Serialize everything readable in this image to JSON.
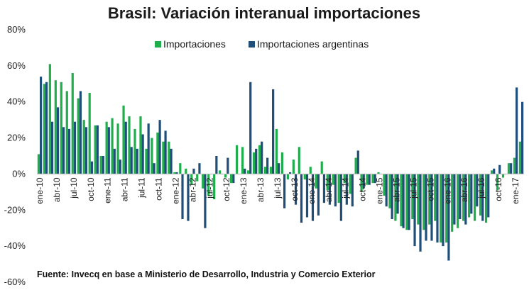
{
  "chart_data": {
    "type": "bar",
    "title": "Brasil: Variación interanual importaciones",
    "source": "Fuente: Invecq en base a Ministerio de Desarrollo, Industria y Comercio Exterior",
    "ylim": [
      -60,
      80
    ],
    "yticks": [
      -60,
      -40,
      -20,
      0,
      20,
      40,
      60,
      80
    ],
    "ytick_labels": [
      "-60%",
      "-40%",
      "-20%",
      "0%",
      "20%",
      "40%",
      "60%",
      "80%"
    ],
    "grid": false,
    "legend_position": "top-center",
    "colors": {
      "Importaciones": "#1fae4b",
      "Importaciones argentinas": "#1f4e79"
    },
    "x": [
      "ene-10",
      "feb-10",
      "mar-10",
      "abr-10",
      "may-10",
      "jun-10",
      "jul-10",
      "ago-10",
      "sep-10",
      "oct-10",
      "nov-10",
      "dic-10",
      "ene-11",
      "feb-11",
      "mar-11",
      "abr-11",
      "may-11",
      "jun-11",
      "jul-11",
      "ago-11",
      "sep-11",
      "oct-11",
      "nov-11",
      "dic-11",
      "ene-12",
      "feb-12",
      "mar-12",
      "abr-12",
      "may-12",
      "jun-12",
      "jul-12",
      "ago-12",
      "sep-12",
      "oct-12",
      "nov-12",
      "dic-12",
      "ene-13",
      "feb-13",
      "mar-13",
      "abr-13",
      "may-13",
      "jun-13",
      "jul-13",
      "ago-13",
      "sep-13",
      "oct-13",
      "nov-13",
      "dic-13",
      "ene-14",
      "feb-14",
      "mar-14",
      "abr-14",
      "may-14",
      "jun-14",
      "jul-14",
      "ago-14",
      "sep-14",
      "oct-14",
      "nov-14",
      "dic-14",
      "ene-15",
      "feb-15",
      "mar-15",
      "abr-15",
      "may-15",
      "jun-15",
      "jul-15",
      "ago-15",
      "sep-15",
      "oct-15",
      "nov-15",
      "dic-15",
      "ene-16",
      "feb-16",
      "mar-16",
      "abr-16",
      "may-16",
      "jun-16",
      "jul-16",
      "ago-16",
      "sep-16",
      "oct-16",
      "nov-16",
      "dic-16",
      "ene-17",
      "feb-17"
    ],
    "xtick_labels": [
      {
        "i": 0,
        "label": "ene-10"
      },
      {
        "i": 3,
        "label": "abr-10"
      },
      {
        "i": 6,
        "label": "jul-10"
      },
      {
        "i": 9,
        "label": "oct-10"
      },
      {
        "i": 12,
        "label": "ene-11"
      },
      {
        "i": 15,
        "label": "abr-11"
      },
      {
        "i": 18,
        "label": "jul-11"
      },
      {
        "i": 21,
        "label": "oct-11"
      },
      {
        "i": 24,
        "label": "ene-12"
      },
      {
        "i": 27,
        "label": "abr-12"
      },
      {
        "i": 30,
        "label": "jul-12"
      },
      {
        "i": 33,
        "label": "oct-12"
      },
      {
        "i": 36,
        "label": "ene-13"
      },
      {
        "i": 39,
        "label": "abr-13"
      },
      {
        "i": 42,
        "label": "jul-13"
      },
      {
        "i": 45,
        "label": "oct-13"
      },
      {
        "i": 48,
        "label": "ene-14"
      },
      {
        "i": 51,
        "label": "abr-14"
      },
      {
        "i": 54,
        "label": "jul-14"
      },
      {
        "i": 57,
        "label": "oct-14"
      },
      {
        "i": 60,
        "label": "ene-15"
      },
      {
        "i": 63,
        "label": "abr-15"
      },
      {
        "i": 66,
        "label": "jul-15"
      },
      {
        "i": 69,
        "label": "oct-15"
      },
      {
        "i": 72,
        "label": "ene-16"
      },
      {
        "i": 75,
        "label": "abr-16"
      },
      {
        "i": 78,
        "label": "jul-16"
      },
      {
        "i": 81,
        "label": "oct-16"
      },
      {
        "i": 84,
        "label": "ene-17"
      }
    ],
    "series": [
      {
        "name": "Importaciones",
        "values": [
          11,
          50,
          61,
          52,
          51,
          46,
          56,
          42,
          30,
          45,
          27,
          10,
          29,
          31,
          28,
          38,
          32,
          25,
          32,
          14,
          20,
          23,
          18,
          18,
          1,
          6,
          3,
          -6,
          -4,
          -8,
          -12,
          -14,
          2,
          -2,
          -5,
          16,
          15,
          2,
          12,
          16,
          4,
          4,
          25,
          12,
          -3,
          8,
          15,
          -3,
          4,
          -8,
          7,
          -9,
          -6,
          -16,
          -5,
          -11,
          9,
          -10,
          -6,
          -5,
          1,
          -12,
          -19,
          -26,
          -29,
          -31,
          -25,
          -28,
          -31,
          -28,
          -26,
          -38,
          -38,
          -32,
          -30,
          -26,
          -24,
          -26,
          -23,
          -27,
          2,
          -9,
          -2,
          6,
          9,
          18
        ]
      },
      {
        "name": "Importaciones argentinas",
        "values": [
          54,
          51,
          29,
          37,
          26,
          25,
          29,
          46,
          26,
          7,
          27,
          10,
          26,
          14,
          8,
          29,
          15,
          14,
          22,
          28,
          6,
          30,
          24,
          14,
          1,
          -25,
          -26,
          3,
          6,
          -30,
          0,
          10,
          0,
          9,
          -5,
          0,
          3,
          51,
          14,
          18,
          9,
          47,
          6,
          -19,
          1,
          -17,
          -27,
          -24,
          -26,
          -23,
          -16,
          -17,
          -18,
          -26,
          -17,
          -18,
          13,
          -8,
          -6,
          -5,
          0,
          -18,
          -25,
          -22,
          -30,
          -31,
          -40,
          -43,
          -37,
          -37,
          -38,
          -40,
          -48,
          -28,
          -25,
          -28,
          -22,
          -18,
          -26,
          -24,
          3,
          5,
          0,
          6,
          48,
          40
        ]
      }
    ]
  }
}
